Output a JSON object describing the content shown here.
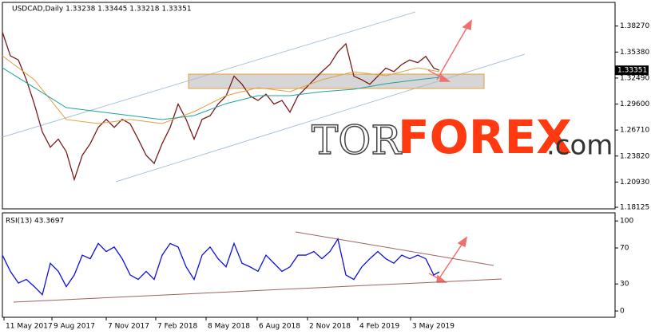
{
  "chart_data": [
    {
      "type": "line",
      "title": "USDCAD,Daily 1.33238 1.33445 1.33218 1.33351",
      "x": [
        0,
        10,
        20,
        30,
        40,
        50,
        60,
        70,
        80,
        90,
        100,
        110,
        120,
        130,
        140,
        150,
        160,
        170,
        180,
        190,
        200,
        210,
        220,
        230,
        240,
        250,
        260,
        270,
        280,
        290,
        300,
        310,
        320,
        330,
        340,
        350,
        360,
        370,
        380,
        390,
        400,
        410,
        420,
        430,
        440,
        450,
        460,
        470,
        480,
        490,
        500,
        510,
        520,
        530,
        540,
        547
      ],
      "xlim": [
        0,
        767
      ],
      "ylim": [
        1.1795,
        1.409
      ],
      "yticks": [
        {
          "value": 1.3827,
          "label": "1.38270"
        },
        {
          "value": 1.3538,
          "label": "1.35380"
        },
        {
          "value": 1.3249,
          "label": "1.32490"
        },
        {
          "value": 1.296,
          "label": "1.29600"
        },
        {
          "value": 1.2671,
          "label": "1.26710"
        },
        {
          "value": 1.2382,
          "label": "1.23820"
        },
        {
          "value": 1.2093,
          "label": "1.20930"
        },
        {
          "value": 1.18125,
          "label": "1.18125"
        }
      ],
      "last_price": {
        "value": 1.33351,
        "label": "1.33351"
      },
      "series": [
        {
          "color": "#7a1a1a",
          "values": [
            1.376,
            1.3496,
            1.345,
            1.323,
            1.296,
            1.265,
            1.248,
            1.257,
            1.243,
            1.212,
            1.239,
            1.252,
            1.27,
            1.279,
            1.27,
            1.279,
            1.274,
            1.257,
            1.239,
            1.23,
            1.252,
            1.27,
            1.296,
            1.279,
            1.257,
            1.279,
            1.283,
            1.296,
            1.305,
            1.327,
            1.318,
            1.305,
            1.3,
            1.307,
            1.296,
            1.3,
            1.287,
            1.305,
            1.314,
            1.323,
            1.332,
            1.34,
            1.354,
            1.363,
            1.327,
            1.323,
            1.318,
            1.327,
            1.336,
            1.332,
            1.34,
            1.345,
            1.342,
            1.349,
            1.336,
            1.3335
          ]
        },
        {
          "color": "#e0a040",
          "x": [
            0,
            40,
            80,
            120,
            160,
            200,
            240,
            280,
            320,
            360,
            400,
            440,
            480,
            520,
            547
          ],
          "values": [
            1.3496,
            1.323,
            1.2788,
            1.2743,
            1.2788,
            1.2743,
            1.2876,
            1.3053,
            1.3142,
            1.3098,
            1.323,
            1.3319,
            1.3275,
            1.3363,
            1.3319
          ]
        },
        {
          "color": "#20a0a0",
          "x": [
            0,
            40,
            80,
            120,
            160,
            200,
            240,
            280,
            320,
            360,
            400,
            440,
            480,
            520,
            547
          ],
          "values": [
            1.3363,
            1.3142,
            1.292,
            1.2876,
            1.2832,
            1.2788,
            1.2832,
            1.2965,
            1.3053,
            1.3053,
            1.3098,
            1.3124,
            1.3186,
            1.323,
            1.3257
          ]
        }
      ]
    },
    {
      "type": "line",
      "title": "RSI(13) 43.3697",
      "x": [
        0,
        10,
        20,
        30,
        40,
        50,
        60,
        70,
        80,
        90,
        100,
        110,
        120,
        130,
        140,
        150,
        160,
        170,
        180,
        190,
        200,
        210,
        220,
        230,
        240,
        250,
        260,
        270,
        280,
        290,
        300,
        310,
        320,
        330,
        340,
        350,
        360,
        370,
        380,
        390,
        400,
        410,
        420,
        430,
        440,
        450,
        460,
        470,
        480,
        490,
        500,
        510,
        520,
        530,
        540,
        547
      ],
      "xlim": [
        0,
        767
      ],
      "xticks": [
        {
          "value": 2,
          "label": "11 May 2017"
        },
        {
          "value": 62,
          "label": "9 Aug 2017"
        },
        {
          "value": 130,
          "label": "7 Nov 2017"
        },
        {
          "value": 192,
          "label": "7 Feb 2018"
        },
        {
          "value": 255,
          "label": "8 May 2018"
        },
        {
          "value": 319,
          "label": "6 Aug 2018"
        },
        {
          "value": 382,
          "label": "2 Nov 2018"
        },
        {
          "value": 445,
          "label": "4 Feb 2019"
        },
        {
          "value": 511,
          "label": "3 May 2019"
        }
      ],
      "ylim": [
        -7,
        109
      ],
      "yticks": [
        100,
        70,
        30,
        0
      ],
      "series": [
        {
          "color": "#1010e0",
          "values": [
            62,
            44,
            31,
            35,
            27,
            18,
            53,
            44,
            27,
            40,
            62,
            58,
            75,
            66,
            71,
            58,
            40,
            35,
            44,
            35,
            62,
            75,
            71,
            49,
            35,
            62,
            71,
            58,
            49,
            75,
            53,
            49,
            44,
            62,
            53,
            44,
            49,
            62,
            62,
            66,
            58,
            66,
            80,
            40,
            35,
            49,
            58,
            66,
            58,
            53,
            62,
            58,
            62,
            58,
            40,
            43.3697
          ]
        }
      ]
    }
  ],
  "logo": {
    "part1": "TOR",
    "part2": "FOREX",
    "part3": ".com"
  }
}
